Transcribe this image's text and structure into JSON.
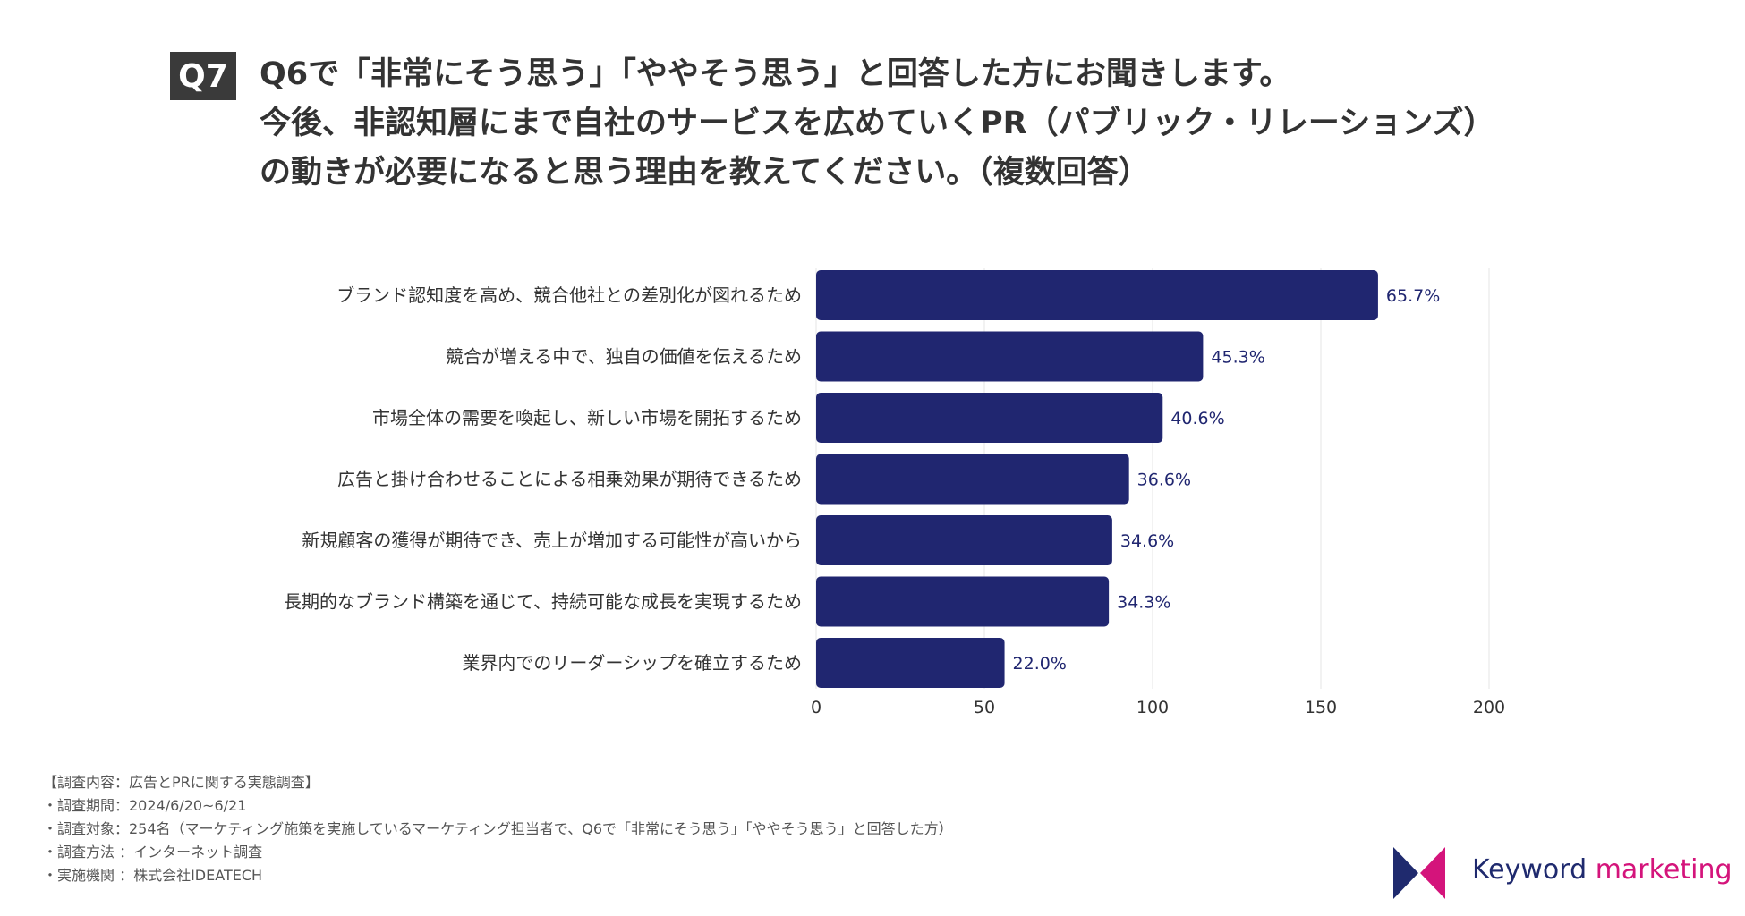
{
  "question": {
    "badge": "Q7",
    "lines": [
      "Q6で「非常にそう思う」「ややそう思う」と回答した方にお聞きします。",
      "今後、非認知層にまで自社のサービスを広めていくPR（パブリック・リレーションズ）",
      "の動きが必要になると思う理由を教えてください。（複数回答）"
    ]
  },
  "chart_data": {
    "type": "bar",
    "orientation": "horizontal",
    "categories": [
      "ブランド認知度を高め、競合他社との差別化が図れるため",
      "競合が増える中で、独自の価値を伝えるため",
      "市場全体の需要を喚起し、新しい市場を開拓するため",
      "広告と掛け合わせることによる相乗効果が期待できるため",
      "新規顧客の獲得が期待でき、売上が増加する可能性が高いから",
      "長期的なブランド構築を通じて、持続可能な成長を実現するため",
      "業界内でのリーダーシップを確立するため"
    ],
    "values": [
      167,
      115,
      103,
      93,
      88,
      87,
      56
    ],
    "value_labels": [
      "65.7%",
      "45.3%",
      "40.6%",
      "36.6%",
      "34.6%",
      "34.3%",
      "22.0%"
    ],
    "xlim": [
      0,
      200
    ],
    "xticks": [
      0,
      50,
      100,
      150,
      200
    ],
    "grid": true,
    "bar_color": "#202670",
    "label_color": "#202670"
  },
  "footnotes": [
    "【調査内容：広告とPRに関する実態調査】",
    "・調査期間：2024/6/20~6/21",
    "・調査対象：254名（マーケティング施策を実施しているマーケティング担当者で、Q6で「非常にそう思う」「ややそう思う」と回答した方）",
    "・調査方法 ：インターネット調査",
    "・実施機関 ：株式会社IDEATECH"
  ],
  "logo": {
    "word1": "Keyword",
    "word2": "marketing",
    "color1": "#1f2a6e",
    "color2": "#d4147b"
  }
}
